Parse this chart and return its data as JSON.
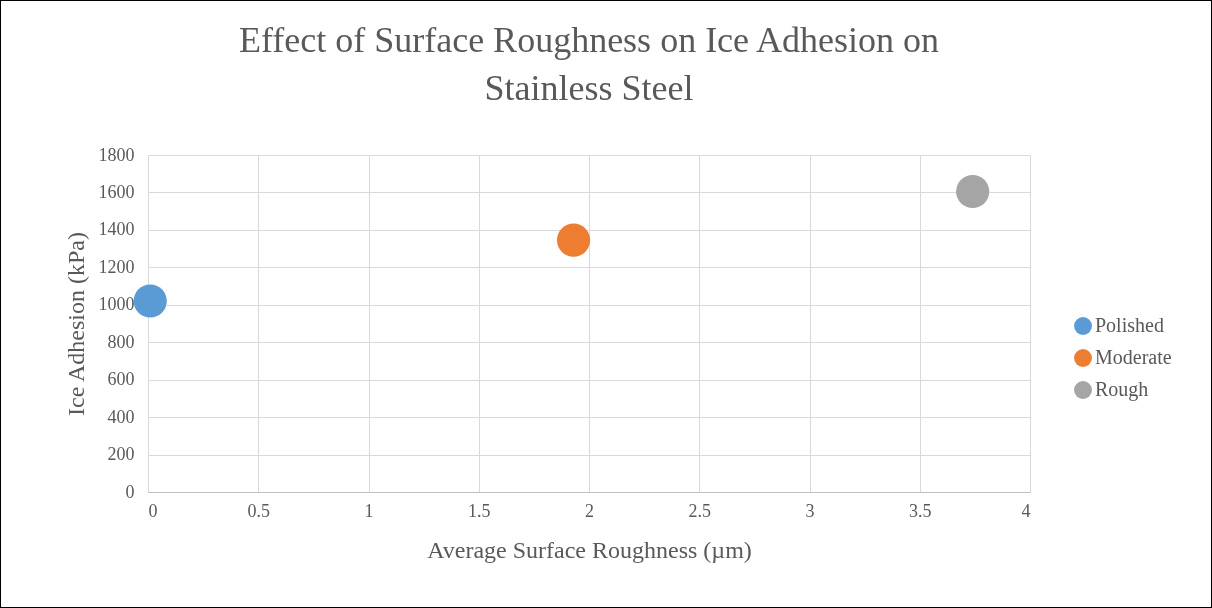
{
  "chart_data": {
    "type": "scatter",
    "title": [
      "Effect of Surface Roughness on Ice Adhesion on",
      "Stainless Steel"
    ],
    "xlabel": "Average Surface Roughness (µm)",
    "ylabel": "Ice Adhesion (kPa)",
    "series": [
      {
        "name": "Polished",
        "color": "#5b9bd5",
        "x": [
          0.01
        ],
        "values": [
          1020
        ]
      },
      {
        "name": "Moderate",
        "color": "#ed7d31",
        "x": [
          1.93
        ],
        "values": [
          1345
        ]
      },
      {
        "name": "Rough",
        "color": "#a5a5a5",
        "x": [
          3.74
        ],
        "values": [
          1605
        ]
      }
    ],
    "xlim": [
      0,
      4
    ],
    "xticks": [
      0,
      0.5,
      1,
      1.5,
      2,
      2.5,
      3,
      3.5,
      4
    ],
    "ylim": [
      0,
      1800
    ],
    "yticks": [
      0,
      200,
      400,
      600,
      800,
      1000,
      1200,
      1400,
      1600,
      1800
    ],
    "grid": true,
    "legend": "right",
    "marker": "circle"
  }
}
